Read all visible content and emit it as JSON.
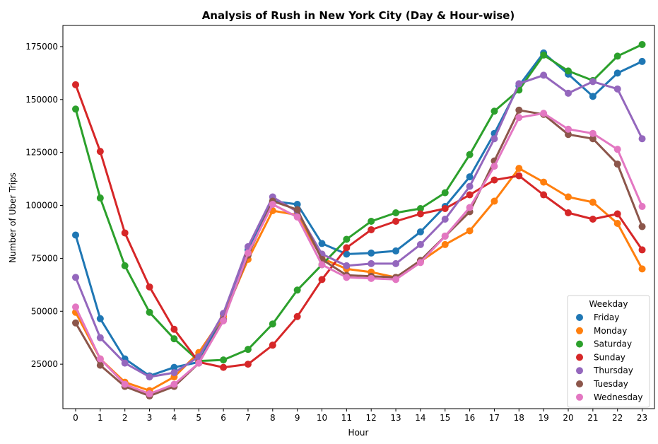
{
  "chart_data": {
    "type": "line",
    "title": "Analysis of Rush in New York City (Day & Hour-wise)",
    "xlabel": "Hour",
    "ylabel": "Number of Uber Trips",
    "x": [
      0,
      1,
      2,
      3,
      4,
      5,
      6,
      7,
      8,
      9,
      10,
      11,
      12,
      13,
      14,
      15,
      16,
      17,
      18,
      19,
      20,
      21,
      22,
      23
    ],
    "y_ticks": [
      25000,
      50000,
      75000,
      100000,
      125000,
      150000,
      175000
    ],
    "ylim": [
      4000,
      185000
    ],
    "grid": false,
    "legend": {
      "title": "Weekday",
      "placement": "lower-right"
    },
    "series": [
      {
        "name": "Friday",
        "color": "#1f77b4",
        "values": [
          86000,
          46500,
          27500,
          19500,
          23500,
          26000,
          48500,
          79000,
          102000,
          100500,
          82000,
          77000,
          77500,
          78500,
          87500,
          99500,
          113500,
          134000,
          156500,
          172000,
          162000,
          151500,
          162500,
          168000
        ]
      },
      {
        "name": "Monday",
        "color": "#ff7f0e",
        "values": [
          49500,
          27500,
          16500,
          12500,
          19000,
          30500,
          47500,
          74500,
          97500,
          95500,
          75000,
          70000,
          68500,
          66000,
          73500,
          81500,
          88000,
          102000,
          117500,
          111000,
          104000,
          101500,
          91500,
          70000
        ]
      },
      {
        "name": "Saturday",
        "color": "#2ca02c",
        "values": [
          145500,
          103500,
          71500,
          49500,
          37000,
          26500,
          27000,
          32000,
          44000,
          60000,
          72000,
          84000,
          92500,
          96500,
          98500,
          106000,
          124000,
          144500,
          154500,
          171000,
          163500,
          159000,
          170500,
          176000
        ]
      },
      {
        "name": "Sunday",
        "color": "#d62728",
        "values": [
          157000,
          125500,
          87000,
          61500,
          41500,
          26000,
          23500,
          25000,
          34000,
          47500,
          65000,
          80000,
          88500,
          92500,
          96000,
          98500,
          105000,
          112000,
          114000,
          105000,
          96500,
          93500,
          96000,
          79000
        ]
      },
      {
        "name": "Thursday",
        "color": "#9467bd",
        "values": [
          66000,
          37500,
          25500,
          19000,
          21000,
          28500,
          49000,
          80500,
          104000,
          97000,
          77000,
          71500,
          72500,
          72500,
          81500,
          93500,
          109000,
          131500,
          157500,
          161500,
          153000,
          158500,
          155000,
          131500
        ]
      },
      {
        "name": "Tuesday",
        "color": "#8c564b",
        "values": [
          44500,
          24500,
          14500,
          10000,
          14500,
          25500,
          46000,
          76500,
          102000,
          98000,
          74500,
          67000,
          66500,
          66000,
          74000,
          85500,
          97000,
          121000,
          145000,
          143000,
          133500,
          131500,
          119500,
          90000
        ]
      },
      {
        "name": "Wednesday",
        "color": "#e377c2",
        "values": [
          52000,
          27500,
          15500,
          11000,
          15500,
          25500,
          45500,
          77500,
          100500,
          94500,
          72000,
          66000,
          65500,
          65000,
          73000,
          85500,
          99000,
          118500,
          141500,
          143500,
          136000,
          134000,
          126500,
          99500
        ]
      }
    ]
  }
}
